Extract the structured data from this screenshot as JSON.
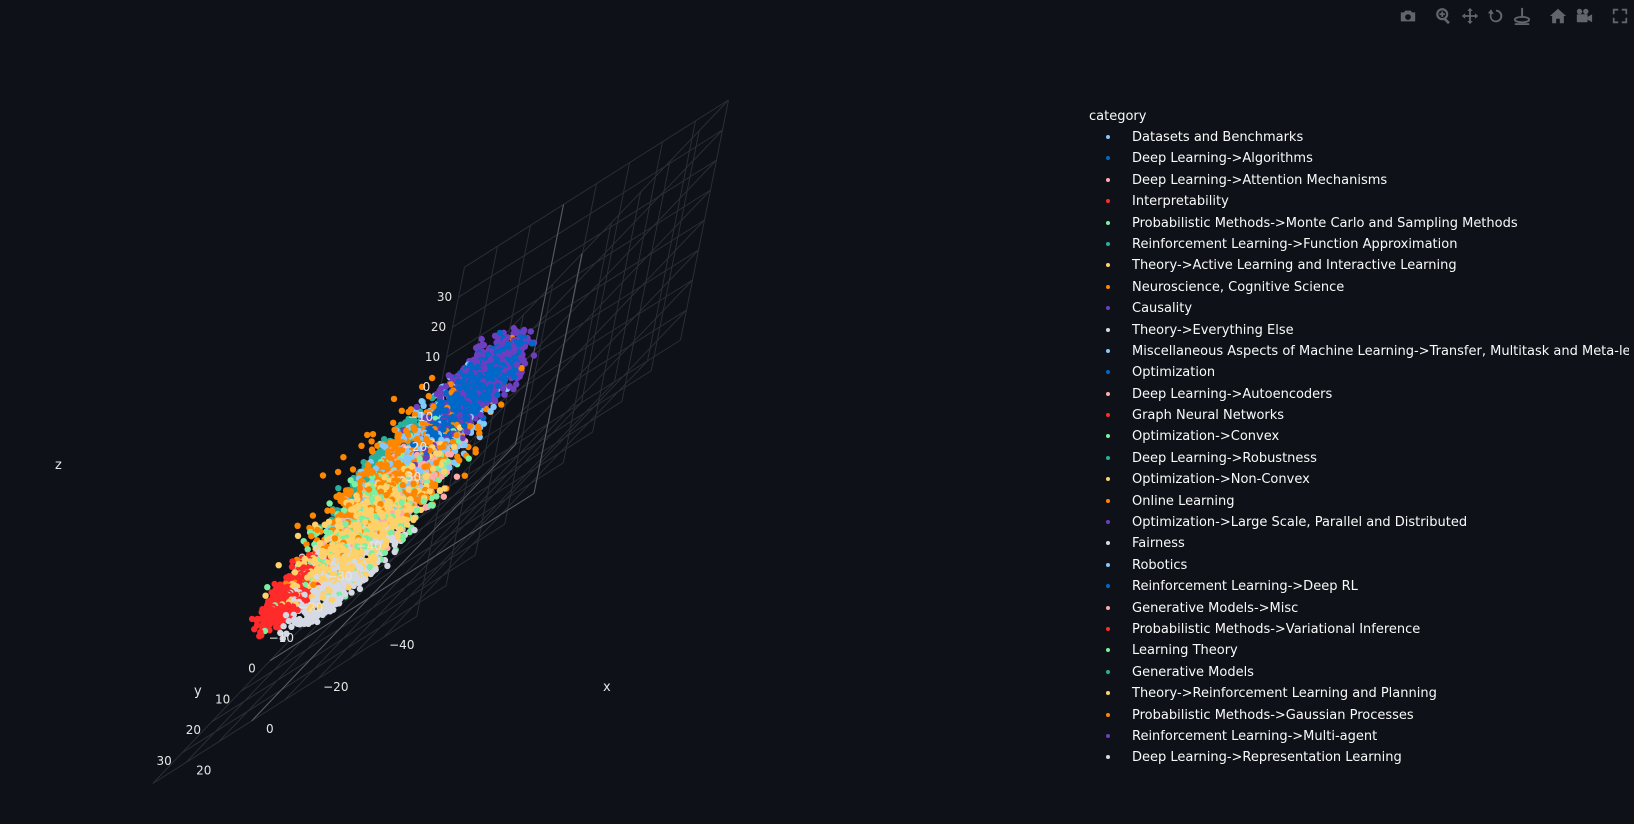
{
  "colors": {
    "background": "#0e1117",
    "grid": "#2a2e36",
    "axis_line": "#5a5e66",
    "tick_text": "#e6e6e6",
    "modebar_icon": "#62656c"
  },
  "modebar": {
    "buttons": [
      {
        "name": "camera-icon",
        "title": "Download plot as a png"
      },
      {
        "name": "zoom-icon",
        "title": "Zoom"
      },
      {
        "name": "pan-icon",
        "title": "Pan"
      },
      {
        "name": "orbit-rotation-icon",
        "title": "Orbital rotation"
      },
      {
        "name": "turntable-rotation-icon",
        "title": "Turntable rotation"
      },
      {
        "name": "home-icon",
        "title": "Reset camera to default"
      },
      {
        "name": "camera-view-icon",
        "title": "Reset camera to last save"
      },
      {
        "name": "fullscreen-icon",
        "title": "Fullscreen"
      }
    ]
  },
  "chart_data": {
    "type": "scatter",
    "dimensions": 3,
    "legend_title": "category",
    "legend_placement": "right",
    "grid": true,
    "axes": {
      "x": {
        "label": "x",
        "ticks": [
          -40,
          -20,
          0,
          20
        ]
      },
      "y": {
        "label": "y",
        "ticks": [
          -40,
          -30,
          -20,
          -10,
          0,
          10,
          20,
          30
        ]
      },
      "z": {
        "label": "z",
        "ticks": [
          -30,
          -20,
          -10,
          0,
          10,
          20,
          30
        ]
      }
    },
    "series": [
      {
        "name": "Datasets and Benchmarks",
        "color": "#83c9ff"
      },
      {
        "name": "Deep Learning->Algorithms",
        "color": "#0068c9"
      },
      {
        "name": "Deep Learning->Attention Mechanisms",
        "color": "#ffabab"
      },
      {
        "name": "Interpretability",
        "color": "#ff2b2b"
      },
      {
        "name": "Probabilistic Methods->Monte Carlo and Sampling Methods",
        "color": "#7defa1"
      },
      {
        "name": "Reinforcement Learning->Function Approximation",
        "color": "#29b09d"
      },
      {
        "name": "Theory->Active Learning and Interactive Learning",
        "color": "#ffd16a"
      },
      {
        "name": "Neuroscience, Cognitive Science",
        "color": "#ff8700"
      },
      {
        "name": "Causality",
        "color": "#6d3fc0"
      },
      {
        "name": "Theory->Everything Else",
        "color": "#d5dae5"
      },
      {
        "name": "Miscellaneous Aspects of Machine Learning->Transfer, Multitask and Meta-learning",
        "color": "#83c9ff"
      },
      {
        "name": "Optimization",
        "color": "#0068c9"
      },
      {
        "name": "Deep Learning->Autoencoders",
        "color": "#ffabab"
      },
      {
        "name": "Graph Neural Networks",
        "color": "#ff2b2b"
      },
      {
        "name": "Optimization->Convex",
        "color": "#7defa1"
      },
      {
        "name": "Deep Learning->Robustness",
        "color": "#29b09d"
      },
      {
        "name": "Optimization->Non-Convex",
        "color": "#ffd16a"
      },
      {
        "name": "Online Learning",
        "color": "#ff8700"
      },
      {
        "name": "Optimization->Large Scale, Parallel and Distributed",
        "color": "#6d3fc0"
      },
      {
        "name": "Fairness",
        "color": "#d5dae5"
      },
      {
        "name": "Robotics",
        "color": "#83c9ff"
      },
      {
        "name": "Reinforcement Learning->Deep RL",
        "color": "#0068c9"
      },
      {
        "name": "Generative Models->Misc",
        "color": "#ffabab"
      },
      {
        "name": "Probabilistic Methods->Variational Inference",
        "color": "#ff2b2b"
      },
      {
        "name": "Learning Theory",
        "color": "#7defa1"
      },
      {
        "name": "Generative Models",
        "color": "#29b09d"
      },
      {
        "name": "Theory->Reinforcement Learning and Planning",
        "color": "#ffd16a"
      },
      {
        "name": "Probabilistic Methods->Gaussian Processes",
        "color": "#ff8700"
      },
      {
        "name": "Reinforcement Learning->Multi-agent",
        "color": "#6d3fc0"
      },
      {
        "name": "Deep Learning->Representation Learning",
        "color": "#d5dae5"
      }
    ]
  }
}
